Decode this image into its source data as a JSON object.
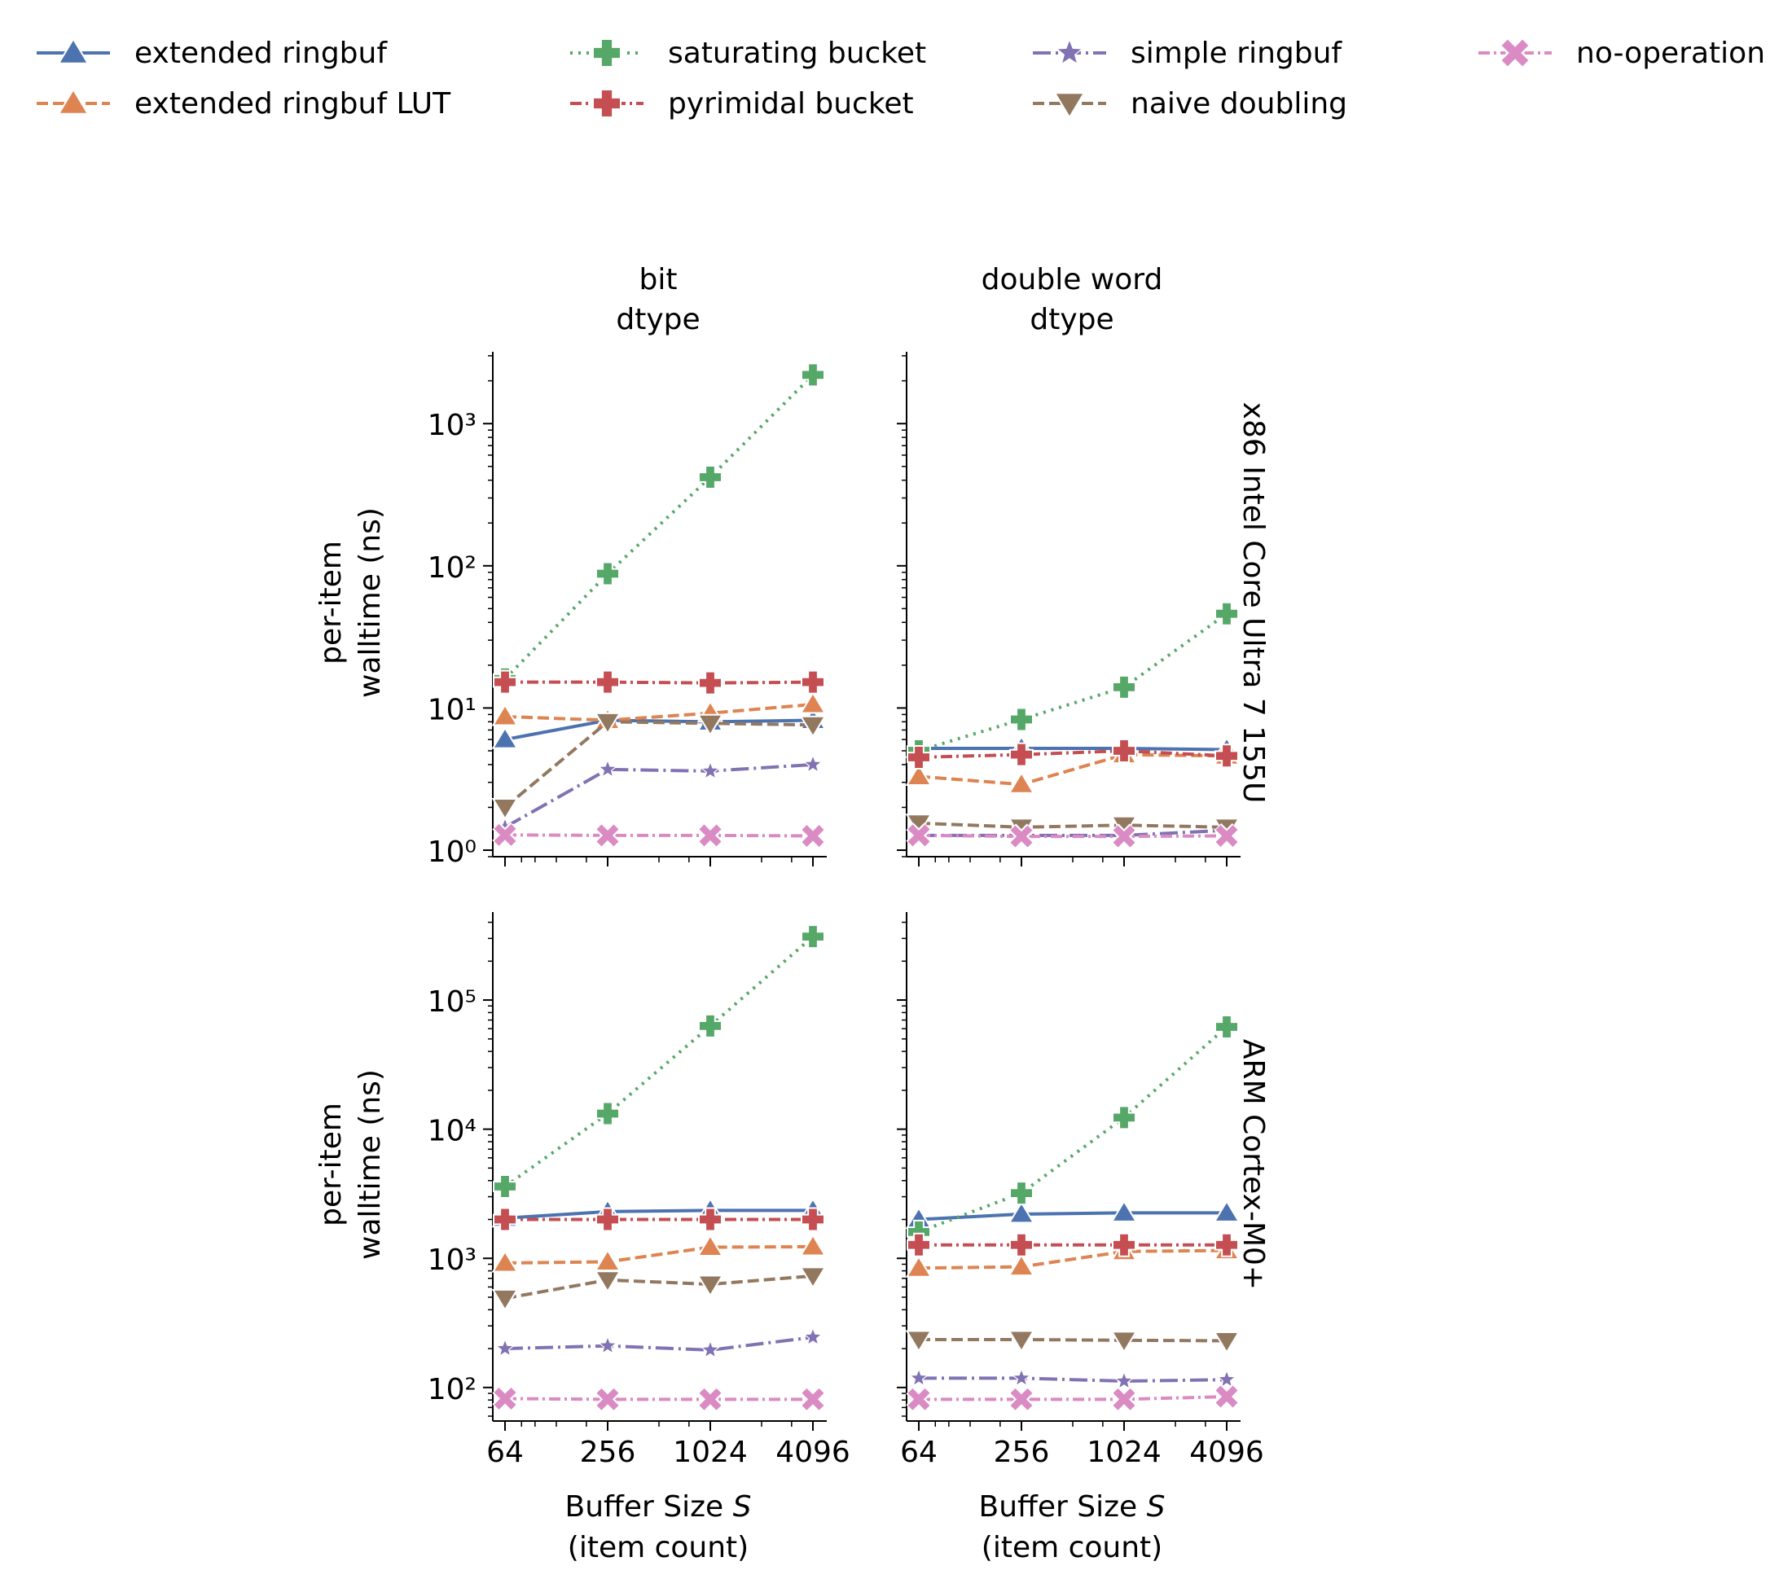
{
  "legend": {
    "placement": "top",
    "entries": [
      {
        "name": "extended ringbuf",
        "color": "#4c72b0",
        "marker": "triangle-up",
        "dash": "solid"
      },
      {
        "name": "extended ringbuf LUT",
        "color": "#dd8452",
        "marker": "triangle-up",
        "dash": "dashed"
      },
      {
        "name": "saturating bucket",
        "color": "#55a868",
        "marker": "plus",
        "dash": "dotted"
      },
      {
        "name": "pyrimidal bucket",
        "color": "#c44e52",
        "marker": "plus",
        "dash": "dashdot"
      },
      {
        "name": "simple ringbuf",
        "color": "#8172b3",
        "marker": "star",
        "dash": "longdashdot"
      },
      {
        "name": "naive doubling",
        "color": "#937860",
        "marker": "triangle-down",
        "dash": "dashed"
      },
      {
        "name": "no-operation",
        "color": "#da8bc3",
        "marker": "x",
        "dash": "dashdot"
      }
    ]
  },
  "col_titles": [
    [
      "bit",
      "dtype"
    ],
    [
      "double word",
      "dtype"
    ]
  ],
  "row_titles": [
    "x86 Intel Core Ultra 7 155U",
    "ARM Cortex-M0+"
  ],
  "ylabel": [
    "per-item",
    "walltime (ns)"
  ],
  "xlabel": [
    "Buffer Size S",
    "(item count)"
  ],
  "xlabel_parts": {
    "text": "Buffer Size ",
    "italic": "S"
  },
  "x_tick_labels": [
    "64",
    "256",
    "1024",
    "4096"
  ],
  "chart_data": [
    {
      "type": "line",
      "row": 0,
      "col": 0,
      "x_scale": "log2",
      "y_scale": "log10",
      "x": [
        64,
        256,
        1024,
        4096
      ],
      "ylim": [
        0.9,
        3200
      ],
      "y_ticks": [
        1,
        10,
        100,
        1000
      ],
      "series": [
        {
          "name": "extended ringbuf",
          "values": [
            6,
            8.2,
            8,
            8.2
          ]
        },
        {
          "name": "extended ringbuf LUT",
          "values": [
            8.7,
            8.2,
            9.2,
            10.6
          ]
        },
        {
          "name": "saturating bucket",
          "values": [
            16,
            88,
            420,
            2200
          ]
        },
        {
          "name": "pyrimidal bucket",
          "values": [
            15.2,
            15.2,
            15,
            15.2
          ]
        },
        {
          "name": "simple ringbuf",
          "values": [
            1.45,
            3.7,
            3.6,
            4
          ]
        },
        {
          "name": "naive doubling",
          "values": [
            2,
            8,
            7.8,
            7.6
          ]
        },
        {
          "name": "no-operation",
          "values": [
            1.28,
            1.27,
            1.27,
            1.26
          ]
        }
      ]
    },
    {
      "type": "line",
      "row": 0,
      "col": 1,
      "x_scale": "log2",
      "y_scale": "log10",
      "x": [
        64,
        256,
        1024,
        4096
      ],
      "ylim": [
        0.9,
        3200
      ],
      "y_ticks": [
        1,
        10,
        100,
        1000
      ],
      "series": [
        {
          "name": "extended ringbuf",
          "values": [
            5.2,
            5.2,
            5.2,
            5.1
          ]
        },
        {
          "name": "extended ringbuf LUT",
          "values": [
            3.3,
            2.9,
            4.7,
            4.6
          ]
        },
        {
          "name": "saturating bucket",
          "values": [
            5,
            8.3,
            14,
            46
          ]
        },
        {
          "name": "pyrimidal bucket",
          "values": [
            4.5,
            4.7,
            5,
            4.6
          ]
        },
        {
          "name": "simple ringbuf",
          "values": [
            1.27,
            1.27,
            1.27,
            1.38
          ]
        },
        {
          "name": "naive doubling",
          "values": [
            1.55,
            1.45,
            1.5,
            1.45
          ]
        },
        {
          "name": "no-operation",
          "values": [
            1.27,
            1.25,
            1.25,
            1.26
          ]
        }
      ]
    },
    {
      "type": "line",
      "row": 1,
      "col": 0,
      "x_scale": "log2",
      "y_scale": "log10",
      "x": [
        64,
        256,
        1024,
        4096
      ],
      "ylim": [
        55,
        480000
      ],
      "y_ticks": [
        100,
        1000,
        10000,
        100000
      ],
      "series": [
        {
          "name": "extended ringbuf",
          "values": [
            2050,
            2300,
            2350,
            2350
          ]
        },
        {
          "name": "extended ringbuf LUT",
          "values": [
            920,
            940,
            1220,
            1230
          ]
        },
        {
          "name": "saturating bucket",
          "values": [
            3600,
            13200,
            63000,
            310000
          ]
        },
        {
          "name": "pyrimidal bucket",
          "values": [
            2000,
            2000,
            2000,
            2000
          ]
        },
        {
          "name": "simple ringbuf",
          "values": [
            200,
            210,
            195,
            245
          ]
        },
        {
          "name": "naive doubling",
          "values": [
            490,
            680,
            630,
            730
          ]
        },
        {
          "name": "no-operation",
          "values": [
            82,
            81,
            81,
            81
          ]
        }
      ]
    },
    {
      "type": "line",
      "row": 1,
      "col": 1,
      "x_scale": "log2",
      "y_scale": "log10",
      "x": [
        64,
        256,
        1024,
        4096
      ],
      "ylim": [
        55,
        480000
      ],
      "y_ticks": [
        100,
        1000,
        10000,
        100000
      ],
      "series": [
        {
          "name": "extended ringbuf",
          "values": [
            2000,
            2200,
            2250,
            2250
          ]
        },
        {
          "name": "extended ringbuf LUT",
          "values": [
            840,
            860,
            1130,
            1150
          ]
        },
        {
          "name": "saturating bucket",
          "values": [
            1600,
            3200,
            12300,
            62000
          ]
        },
        {
          "name": "pyrimidal bucket",
          "values": [
            1270,
            1270,
            1270,
            1270
          ]
        },
        {
          "name": "simple ringbuf",
          "values": [
            118,
            118,
            112,
            115
          ]
        },
        {
          "name": "naive doubling",
          "values": [
            235,
            235,
            232,
            230
          ]
        },
        {
          "name": "no-operation",
          "values": [
            81,
            81,
            81,
            85
          ]
        }
      ]
    }
  ]
}
